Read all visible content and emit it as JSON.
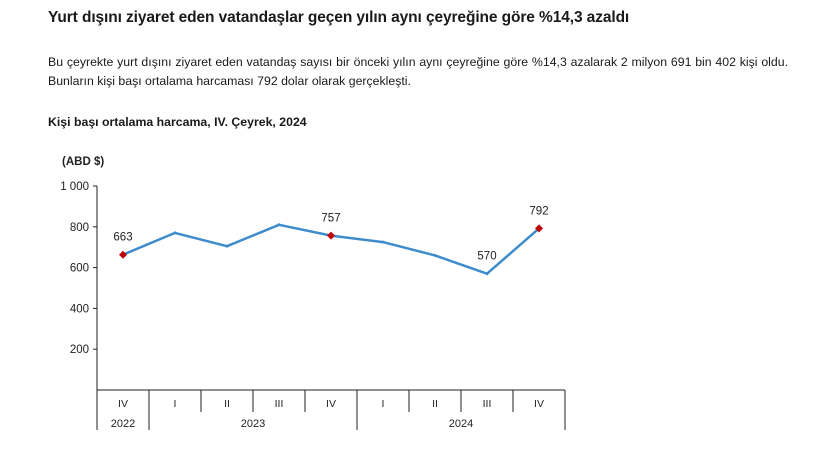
{
  "headline": "Yurt dışını ziyaret eden vatandaşlar geçen yılın aynı çeyreğine göre %14,3 azaldı",
  "lead_text": "Bu çeyrekte yurt dışını ziyaret eden vatandaş sayısı bir önceki yılın aynı çeyreğine göre %14,3 azalarak 2 milyon 691 bin 402 kişi oldu. Bunların kişi başı ortalama harcaması 792 dolar olarak gerçekleşti.",
  "chart_data": {
    "type": "line",
    "title": "Kişi başı ortalama harcama, IV. Çeyrek, 2024",
    "ylabel": "(ABD $)",
    "xlabel": "",
    "ylim": [
      0,
      1000
    ],
    "yticks": [
      200,
      400,
      600,
      800,
      1000
    ],
    "ytick_labels": [
      "200",
      "400",
      "600",
      "800",
      "1 000"
    ],
    "categories": [
      "IV",
      "I",
      "II",
      "III",
      "IV",
      "I",
      "II",
      "III",
      "IV"
    ],
    "years": [
      {
        "label": "2022",
        "span": 1
      },
      {
        "label": "2023",
        "span": 4
      },
      {
        "label": "2024",
        "span": 4
      }
    ],
    "series": [
      {
        "name": "Kişi başı ortalama harcama",
        "values": [
          663,
          770,
          705,
          810,
          757,
          725,
          660,
          570,
          792
        ]
      }
    ],
    "highlight_indices": [
      0,
      4,
      8
    ],
    "data_labels": [
      {
        "index": 0,
        "text": "663"
      },
      {
        "index": 4,
        "text": "757"
      },
      {
        "index": 7,
        "text": "570"
      },
      {
        "index": 8,
        "text": "792"
      }
    ],
    "colors": {
      "line": "#3e8ccc",
      "marker": "#c00000",
      "axis": "#222222"
    }
  }
}
